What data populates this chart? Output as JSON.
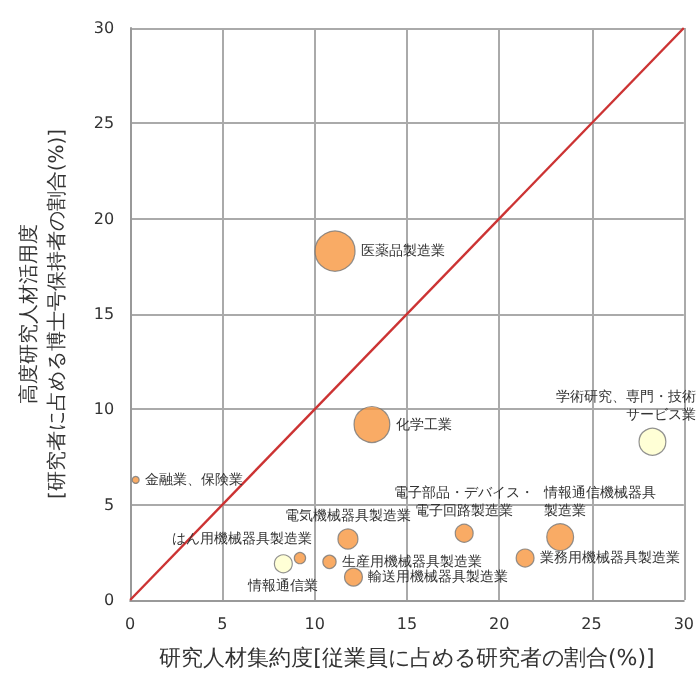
{
  "chart_data": {
    "type": "bubble",
    "xlabel": "研究人材集約度[従業員に占める研究者の割合(%)]",
    "ylabel": "高度研究人材活用度\n[研究者に占める博士号保持者の割合(%)]",
    "x": [
      11.1,
      13.1,
      0.3,
      11.8,
      9.2,
      8.3,
      10.8,
      12.1,
      18.1,
      23.3,
      21.4,
      28.3
    ],
    "values": [
      18.3,
      9.2,
      6.3,
      3.2,
      2.2,
      1.9,
      2.0,
      1.2,
      3.5,
      3.3,
      2.2,
      8.3
    ],
    "sizes": [
      1,
      0.8,
      0.03,
      0.25,
      0.08,
      0.2,
      0.11,
      0.2,
      0.2,
      0.45,
      0.2,
      0.45
    ],
    "colors": [
      "#f7963e",
      "#f7963e",
      "#f7963e",
      "#f7963e",
      "#f7963e",
      "#ffffcc",
      "#f7963e",
      "#f7963e",
      "#f7963e",
      "#f7963e",
      "#f7963e",
      "#ffffcc"
    ],
    "series": [
      {
        "type": "line",
        "color": "#cc3333",
        "x": [
          0,
          30
        ],
        "values": [
          0,
          30
        ]
      }
    ],
    "annotations": [
      {
        "text": "医薬品製造業",
        "x": 11.1,
        "y": 18.3
      },
      {
        "text": "化学工業",
        "x": 13.1,
        "y": 9.2
      },
      {
        "text": "金融業、保険業",
        "x": 0.3,
        "y": 6.3
      },
      {
        "text": "電気機械器具製造業",
        "x": 11.8,
        "y": 3.2
      },
      {
        "text": "はん用機械器具製造業",
        "x": 9.2,
        "y": 2.2
      },
      {
        "text": "情報通信業",
        "x": 8.3,
        "y": 1.9
      },
      {
        "text": "生産用機械器具製造業",
        "x": 10.8,
        "y": 2.0
      },
      {
        "text": "輸送用機械器具製造業",
        "x": 12.1,
        "y": 1.2
      },
      {
        "text": "電子部品・デバイス・電子回路製造業",
        "x": 18.1,
        "y": 3.5
      },
      {
        "text": "情報通信機械器具製造業",
        "x": 23.3,
        "y": 3.3
      },
      {
        "text": "業務用機械器具製造業",
        "x": 21.4,
        "y": 2.2
      },
      {
        "text": "学術研究、専門・技術サービス業",
        "x": 28.3,
        "y": 8.3
      }
    ],
    "xlim": [
      0,
      30
    ],
    "xticks": [
      0,
      5,
      10,
      15,
      20,
      25,
      30
    ],
    "ylim": [
      0,
      30
    ],
    "yticks": [
      0,
      5,
      10,
      15,
      20,
      25,
      30
    ],
    "grid": true
  }
}
